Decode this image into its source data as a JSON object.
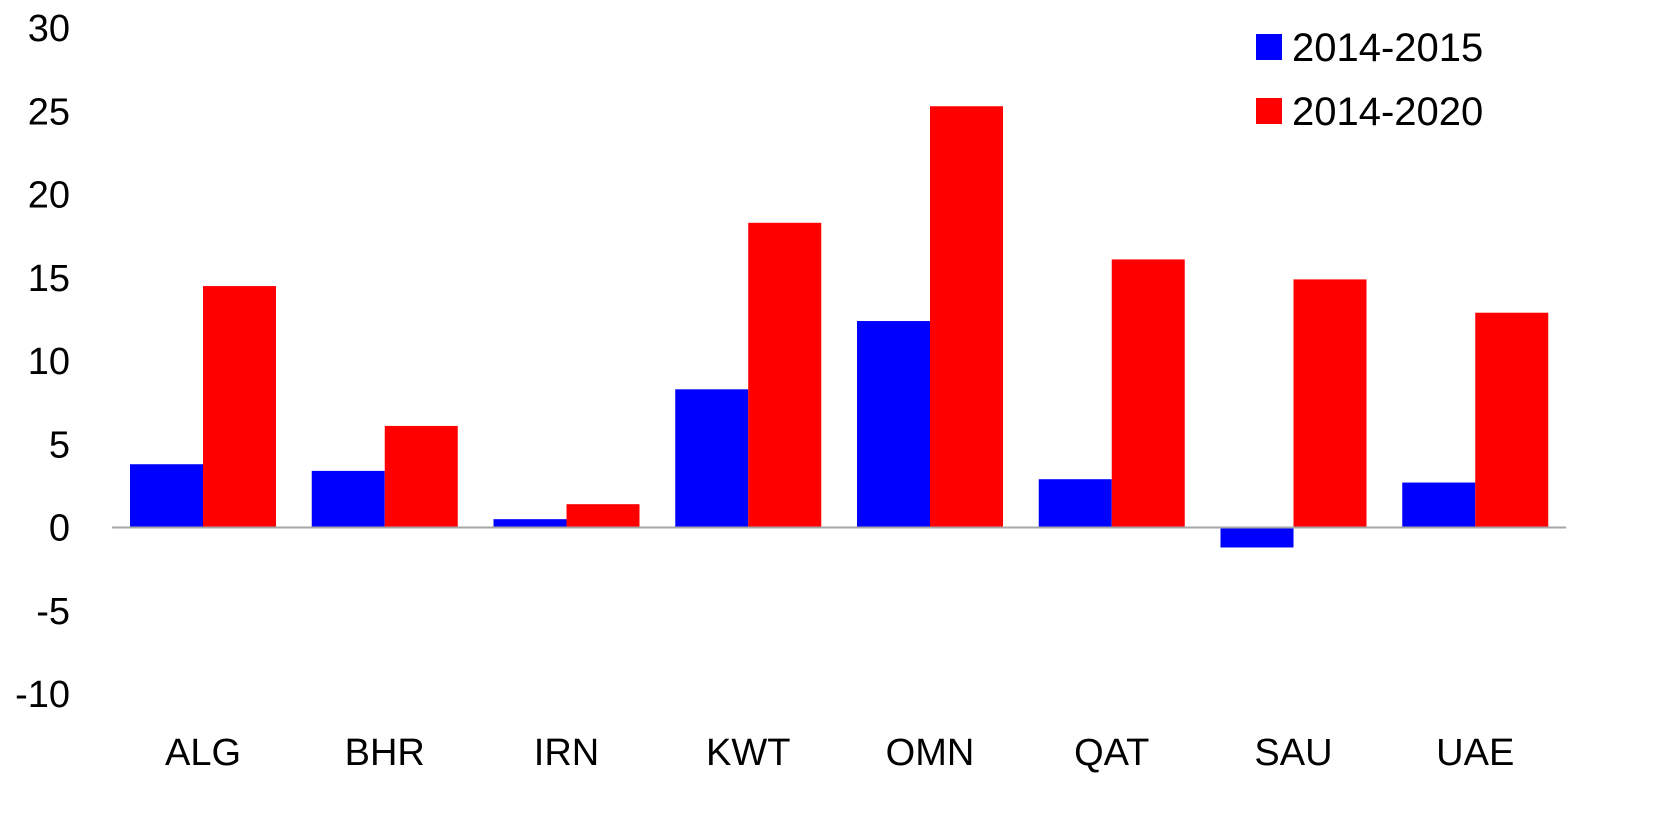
{
  "chart_data": {
    "type": "bar",
    "categories": [
      "ALG",
      "BHR",
      "IRN",
      "KWT",
      "OMN",
      "QAT",
      "SAU",
      "UAE"
    ],
    "series": [
      {
        "name": "2014-2015",
        "color": "#0000ff",
        "values": [
          3.8,
          3.4,
          0.5,
          8.3,
          12.4,
          2.9,
          -1.2,
          2.7
        ]
      },
      {
        "name": "2014-2020",
        "color": "#ff0000",
        "values": [
          14.5,
          6.1,
          1.4,
          18.3,
          25.3,
          16.1,
          14.9,
          12.9
        ]
      }
    ],
    "ylim": [
      -10,
      30
    ],
    "yticks": [
      "30",
      "25",
      "20",
      "15",
      "10",
      "5",
      "0",
      "-5",
      "-10"
    ],
    "grid": false,
    "legend": "top-right"
  }
}
